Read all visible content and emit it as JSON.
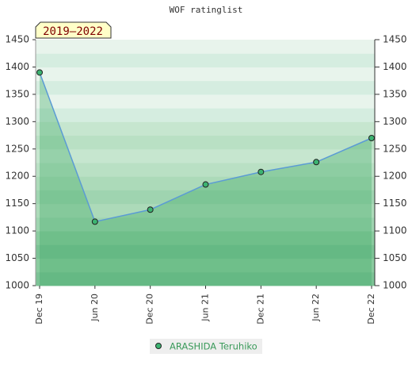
{
  "chart_data": {
    "type": "line",
    "title": "WOF ratinglist",
    "badge": "2019–2022",
    "categories": [
      "Dec 19",
      "Jun 20",
      "Dec 20",
      "Jun 21",
      "Dec 21",
      "Jun 22",
      "Dec 22"
    ],
    "series": [
      {
        "name": "ARASHIDA Teruhiko",
        "color": "#5b9bd5",
        "marker_color": "#3cb371",
        "values": [
          1390,
          1117,
          1139,
          1185,
          1208,
          1226,
          1270
        ]
      }
    ],
    "ylim": [
      1000,
      1450
    ],
    "yticks": [
      1000,
      1050,
      1100,
      1150,
      1200,
      1250,
      1300,
      1350,
      1400,
      1450
    ],
    "y2lim": [
      1000,
      1450
    ],
    "y2ticks": [
      1000,
      1050,
      1100,
      1150,
      1200,
      1250,
      1300,
      1350,
      1400,
      1450
    ]
  }
}
